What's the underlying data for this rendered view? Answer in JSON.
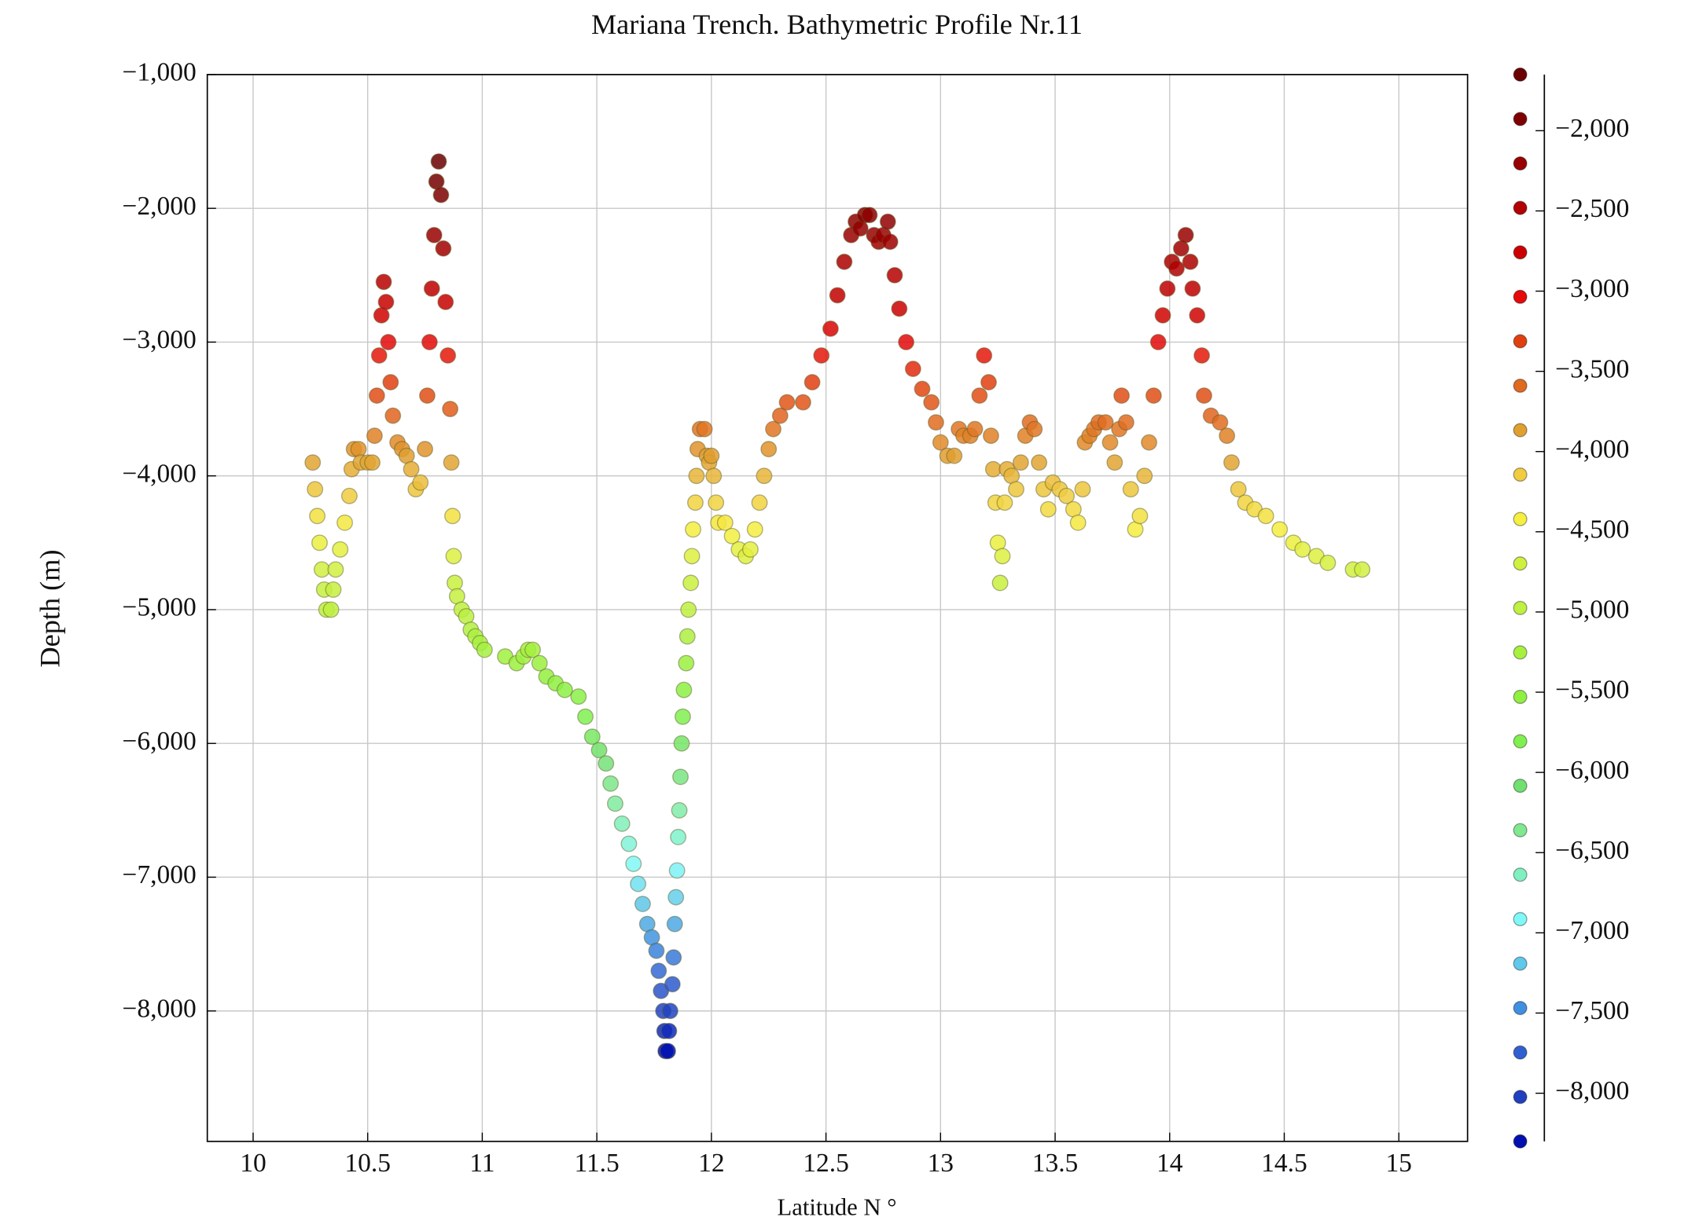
{
  "chart_data": {
    "type": "scatter",
    "title": "Mariana Trench. Bathymetric Profile Nr.11",
    "x_label": "Latitude N °",
    "y_label": "Depth (m)",
    "xlim": [
      9.8,
      15.3
    ],
    "ylim": [
      -8975,
      -1000
    ],
    "xticks": [
      10,
      10.5,
      11,
      11.5,
      12,
      12.5,
      13,
      13.5,
      14,
      14.5,
      15
    ],
    "yticks": [
      {
        "value": -1000,
        "label": "−1,000"
      },
      {
        "value": -2000,
        "label": "−2,000"
      },
      {
        "value": -3000,
        "label": "−3,000"
      },
      {
        "value": -4000,
        "label": "−4,000"
      },
      {
        "value": -5000,
        "label": "−5,000"
      },
      {
        "value": -6000,
        "label": "−6,000"
      },
      {
        "value": -7000,
        "label": "−7,000"
      },
      {
        "value": -8000,
        "label": "−8,000"
      }
    ],
    "grid": true,
    "colorbar": {
      "lim": [
        -8300,
        -1650
      ],
      "ticks": [
        {
          "value": -2000,
          "label": "−2,000"
        },
        {
          "value": -2500,
          "label": "−2,500"
        },
        {
          "value": -3000,
          "label": "−3,000"
        },
        {
          "value": -3500,
          "label": "−3,500"
        },
        {
          "value": -4000,
          "label": "−4,000"
        },
        {
          "value": -4500,
          "label": "−4,500"
        },
        {
          "value": -5000,
          "label": "−5,000"
        },
        {
          "value": -5500,
          "label": "−5,500"
        },
        {
          "value": -6000,
          "label": "−6,000"
        },
        {
          "value": -6500,
          "label": "−6,500"
        },
        {
          "value": -7000,
          "label": "−7,000"
        },
        {
          "value": -7500,
          "label": "−7,500"
        },
        {
          "value": -8000,
          "label": "−8,000"
        }
      ],
      "colors": [
        "#6b0000",
        "#800000",
        "#990000",
        "#b30000",
        "#cc0000",
        "#e60a0a",
        "#e04010",
        "#e06a20",
        "#e0a030",
        "#f0cc40",
        "#f5f040",
        "#d0f040",
        "#c0f040",
        "#a8f040",
        "#90f040",
        "#80f050",
        "#70e070",
        "#80e890",
        "#80f0c0",
        "#80f8f8",
        "#60c8e8",
        "#4090e0",
        "#3060d0",
        "#2040c0",
        "#0010b0"
      ]
    },
    "x": [
      10.26,
      10.27,
      10.28,
      10.29,
      10.3,
      10.31,
      10.32,
      10.34,
      10.35,
      10.36,
      10.38,
      10.4,
      10.42,
      10.43,
      10.44,
      10.46,
      10.47,
      10.5,
      10.52,
      10.53,
      10.54,
      10.55,
      10.56,
      10.57,
      10.58,
      10.59,
      10.6,
      10.61,
      10.63,
      10.65,
      10.67,
      10.69,
      10.71,
      10.73,
      10.75,
      10.76,
      10.77,
      10.78,
      10.79,
      10.8,
      10.81,
      10.82,
      10.83,
      10.84,
      10.85,
      10.86,
      10.865,
      10.87,
      10.875,
      10.88,
      10.89,
      10.91,
      10.93,
      10.95,
      10.97,
      10.99,
      11.01,
      11.1,
      11.15,
      11.18,
      11.2,
      11.22,
      11.25,
      11.28,
      11.32,
      11.36,
      11.42,
      11.45,
      11.48,
      11.51,
      11.54,
      11.56,
      11.58,
      11.61,
      11.64,
      11.66,
      11.68,
      11.7,
      11.72,
      11.74,
      11.76,
      11.77,
      11.78,
      11.79,
      11.795,
      11.8,
      11.81,
      11.815,
      11.82,
      11.83,
      11.835,
      11.84,
      11.845,
      11.85,
      11.855,
      11.86,
      11.865,
      11.87,
      11.875,
      11.88,
      11.89,
      11.895,
      11.9,
      11.91,
      11.915,
      11.92,
      11.93,
      11.935,
      11.94,
      11.95,
      11.97,
      11.98,
      11.99,
      12.0,
      12.01,
      12.02,
      12.03,
      12.06,
      12.09,
      12.12,
      12.15,
      12.17,
      12.19,
      12.21,
      12.23,
      12.25,
      12.27,
      12.3,
      12.33,
      12.4,
      12.44,
      12.48,
      12.52,
      12.55,
      12.58,
      12.61,
      12.63,
      12.65,
      12.67,
      12.69,
      12.71,
      12.73,
      12.75,
      12.77,
      12.78,
      12.8,
      12.82,
      12.85,
      12.88,
      12.92,
      12.96,
      12.98,
      13.0,
      13.03,
      13.06,
      13.08,
      13.1,
      13.13,
      13.15,
      13.17,
      13.19,
      13.21,
      13.22,
      13.23,
      13.24,
      13.25,
      13.26,
      13.27,
      13.28,
      13.29,
      13.31,
      13.33,
      13.35,
      13.37,
      13.39,
      13.41,
      13.43,
      13.45,
      13.47,
      13.49,
      13.52,
      13.55,
      13.58,
      13.6,
      13.62,
      13.63,
      13.65,
      13.67,
      13.69,
      13.72,
      13.74,
      13.76,
      13.78,
      13.79,
      13.81,
      13.83,
      13.85,
      13.87,
      13.89,
      13.91,
      13.93,
      13.95,
      13.97,
      13.99,
      14.01,
      14.03,
      14.05,
      14.07,
      14.09,
      14.1,
      14.12,
      14.14,
      14.15,
      14.18,
      14.22,
      14.25,
      14.27,
      14.3,
      14.33,
      14.37,
      14.42,
      14.48,
      14.54,
      14.58,
      14.64,
      14.69,
      14.8,
      14.84
    ],
    "values": [
      -3900,
      -4100,
      -4300,
      -4500,
      -4700,
      -4850,
      -5000,
      -5000,
      -4850,
      -4700,
      -4550,
      -4350,
      -4150,
      -3950,
      -3800,
      -3800,
      -3900,
      -3900,
      -3900,
      -3700,
      -3400,
      -3100,
      -2800,
      -2550,
      -2700,
      -3000,
      -3300,
      -3550,
      -3750,
      -3800,
      -3850,
      -3950,
      -4100,
      -4050,
      -3800,
      -3400,
      -3000,
      -2600,
      -2200,
      -1800,
      -1650,
      -1900,
      -2300,
      -2700,
      -3100,
      -3500,
      -3900,
      -4300,
      -4600,
      -4800,
      -4900,
      -5000,
      -5050,
      -5150,
      -5200,
      -5250,
      -5300,
      -5350,
      -5400,
      -5350,
      -5300,
      -5300,
      -5400,
      -5500,
      -5550,
      -5600,
      -5650,
      -5800,
      -5950,
      -6050,
      -6150,
      -6300,
      -6450,
      -6600,
      -6750,
      -6900,
      -7050,
      -7200,
      -7350,
      -7450,
      -7550,
      -7700,
      -7850,
      -8000,
      -8150,
      -8300,
      -8300,
      -8150,
      -8000,
      -7800,
      -7600,
      -7350,
      -7150,
      -6950,
      -6700,
      -6500,
      -6250,
      -6000,
      -5800,
      -5600,
      -5400,
      -5200,
      -5000,
      -4800,
      -4600,
      -4400,
      -4200,
      -4000,
      -3800,
      -3650,
      -3650,
      -3850,
      -3900,
      -3850,
      -4000,
      -4200,
      -4350,
      -4350,
      -4450,
      -4550,
      -4600,
      -4550,
      -4400,
      -4200,
      -4000,
      -3800,
      -3650,
      -3550,
      -3450,
      -3450,
      -3300,
      -3100,
      -2900,
      -2650,
      -2400,
      -2200,
      -2100,
      -2150,
      -2050,
      -2050,
      -2200,
      -2250,
      -2200,
      -2100,
      -2250,
      -2500,
      -2750,
      -3000,
      -3200,
      -3350,
      -3450,
      -3600,
      -3750,
      -3850,
      -3850,
      -3650,
      -3700,
      -3700,
      -3650,
      -3400,
      -3100,
      -3300,
      -3700,
      -3950,
      -4200,
      -4500,
      -4800,
      -4600,
      -4200,
      -3950,
      -4000,
      -4100,
      -3900,
      -3700,
      -3600,
      -3650,
      -3900,
      -4100,
      -4250,
      -4050,
      -4100,
      -4150,
      -4250,
      -4350,
      -4100,
      -3750,
      -3700,
      -3650,
      -3600,
      -3600,
      -3750,
      -3900,
      -3650,
      -3400,
      -3600,
      -4100,
      -4400,
      -4300,
      -4000,
      -3750,
      -3400,
      -3000,
      -2800,
      -2600,
      -2400,
      -2450,
      -2300,
      -2200,
      -2400,
      -2600,
      -2800,
      -3100,
      -3400,
      -3550,
      -3600,
      -3700,
      -3900,
      -4100,
      -4200,
      -4250,
      -4300,
      -4400,
      -4500,
      -4550,
      -4600,
      -4650,
      -4700,
      -4700
    ]
  }
}
